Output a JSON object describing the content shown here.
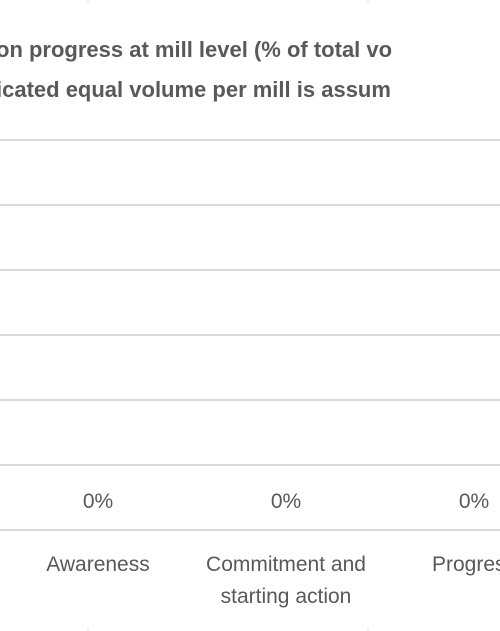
{
  "chart_data": {
    "type": "bar",
    "title_lines": [
      "on progress at mill level (% of total vo",
      "icated equal volume per mill is assum"
    ],
    "categories": [
      [
        "Awareness"
      ],
      [
        "Commitment and",
        "starting action"
      ],
      [
        "Progress"
      ]
    ],
    "values": [
      0,
      0,
      0
    ],
    "data_labels": [
      "0%",
      "0%",
      "0%"
    ],
    "ylim": [
      0,
      100
    ],
    "gridlines": 5,
    "grid": true,
    "colors": {
      "text": "#595959",
      "grid": "#d9d9d9"
    }
  }
}
